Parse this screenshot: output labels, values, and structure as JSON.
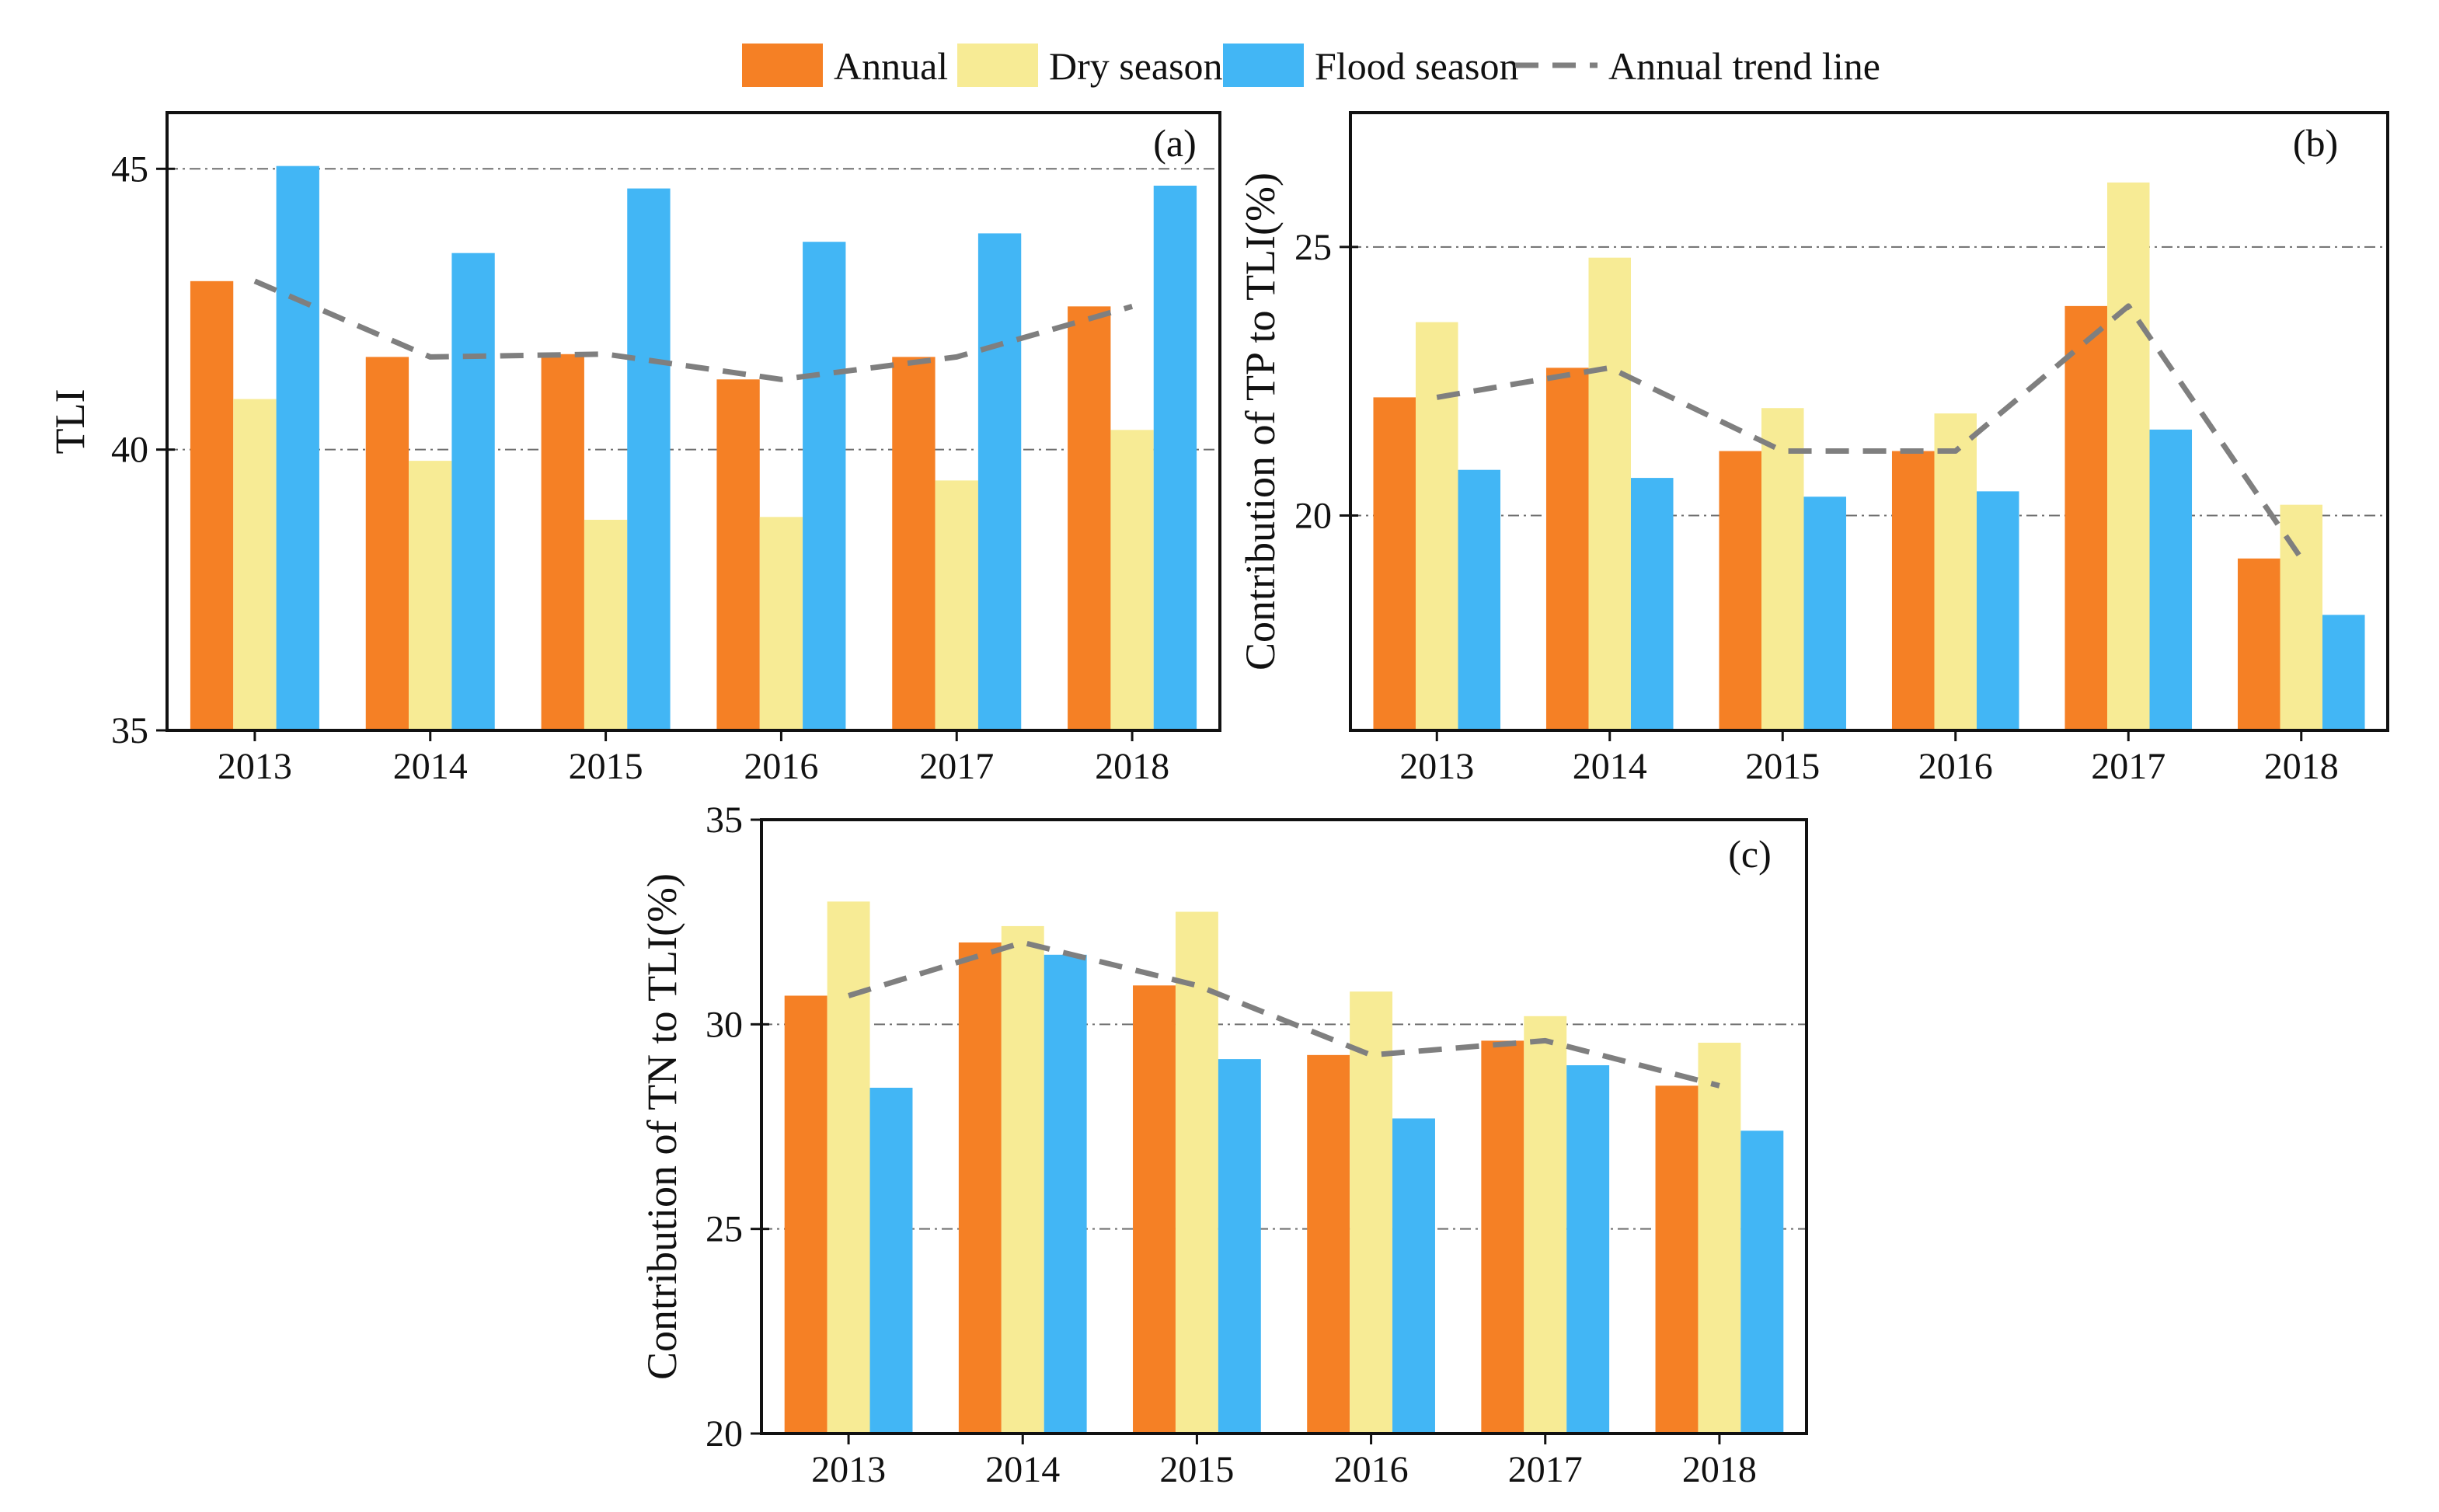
{
  "legend": {
    "items": [
      {
        "label": "Annual",
        "kind": "bar",
        "color": "#F58025"
      },
      {
        "label": "Dry season",
        "kind": "bar",
        "color": "#F7EB95"
      },
      {
        "label": "Flood season",
        "kind": "bar",
        "color": "#42B6F5"
      },
      {
        "label": "Annual trend line",
        "kind": "dashed-line",
        "color": "#7F7F7F"
      }
    ]
  },
  "chart_data": [
    {
      "type": "bar",
      "panel_label": "(a)",
      "title": "",
      "xlabel": "",
      "ylabel": "TLI",
      "ylim": [
        35,
        46
      ],
      "yticks": [
        35,
        40,
        45
      ],
      "gridlines": [
        40,
        45
      ],
      "categories": [
        "2013",
        "2014",
        "2015",
        "2016",
        "2017",
        "2018"
      ],
      "series": [
        {
          "name": "Annual",
          "color": "#F58025",
          "values": [
            43.0,
            41.65,
            41.7,
            41.25,
            41.65,
            42.55
          ]
        },
        {
          "name": "Dry season",
          "color": "#F7EB95",
          "values": [
            40.9,
            39.8,
            38.75,
            38.8,
            39.45,
            40.35
          ]
        },
        {
          "name": "Flood season",
          "color": "#42B6F5",
          "values": [
            45.05,
            43.5,
            44.65,
            43.7,
            43.85,
            44.7
          ]
        }
      ],
      "trend": {
        "name": "Annual trend line",
        "color": "#7F7F7F",
        "values": [
          43.0,
          41.65,
          41.7,
          41.25,
          41.65,
          42.55
        ]
      }
    },
    {
      "type": "bar",
      "panel_label": "(b)",
      "title": "",
      "xlabel": "",
      "ylabel": "Contribution of TP to TLI(%)",
      "ylim": [
        16,
        27.5
      ],
      "yticks": [
        20,
        25
      ],
      "gridlines": [
        20,
        25
      ],
      "categories": [
        "2013",
        "2014",
        "2015",
        "2016",
        "2017",
        "2018"
      ],
      "series": [
        {
          "name": "Annual",
          "color": "#F58025",
          "values": [
            22.2,
            22.75,
            21.2,
            21.2,
            23.9,
            19.2
          ]
        },
        {
          "name": "Dry season",
          "color": "#F7EB95",
          "values": [
            23.6,
            24.8,
            22.0,
            21.9,
            26.2,
            20.2
          ]
        },
        {
          "name": "Flood season",
          "color": "#42B6F5",
          "values": [
            20.85,
            20.7,
            20.35,
            20.45,
            21.6,
            18.15
          ]
        }
      ],
      "trend": {
        "name": "Annual trend line",
        "color": "#7F7F7F",
        "values": [
          22.2,
          22.75,
          21.2,
          21.2,
          23.9,
          19.2
        ]
      }
    },
    {
      "type": "bar",
      "panel_label": "(c)",
      "title": "",
      "xlabel": "",
      "ylabel": "Contribution of TN to TLI(%)",
      "ylim": [
        20,
        35
      ],
      "yticks": [
        20,
        25,
        30,
        35
      ],
      "gridlines": [
        25,
        30
      ],
      "categories": [
        "2013",
        "2014",
        "2015",
        "2016",
        "2017",
        "2018"
      ],
      "series": [
        {
          "name": "Annual",
          "color": "#F58025",
          "values": [
            30.7,
            32.0,
            30.95,
            29.25,
            29.6,
            28.5
          ]
        },
        {
          "name": "Dry season",
          "color": "#F7EB95",
          "values": [
            33.0,
            32.4,
            32.75,
            30.8,
            30.2,
            29.55
          ]
        },
        {
          "name": "Flood season",
          "color": "#42B6F5",
          "values": [
            28.45,
            31.7,
            29.15,
            27.7,
            29.0,
            27.4
          ]
        }
      ],
      "trend": {
        "name": "Annual trend line",
        "color": "#7F7F7F",
        "values": [
          30.7,
          32.0,
          30.95,
          29.25,
          29.6,
          28.5
        ]
      }
    }
  ]
}
